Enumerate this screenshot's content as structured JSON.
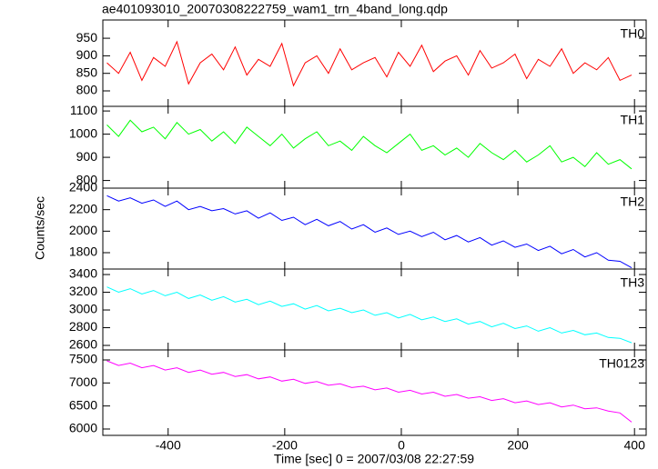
{
  "chart_data": [
    {
      "type": "line",
      "title": "ae401093010_20070308222759_wam1_trn_4band_long.qdp",
      "label": "TH0",
      "xlim": [
        -512,
        420
      ],
      "xticks": [
        -400,
        -200,
        0,
        200,
        400
      ],
      "ylim": [
        756,
        1002
      ],
      "yticks": [
        800,
        850,
        900,
        950
      ],
      "x": [
        -505,
        -485,
        -465,
        -445,
        -425,
        -405,
        -385,
        -365,
        -345,
        -325,
        -305,
        -285,
        -265,
        -245,
        -225,
        -205,
        -185,
        -165,
        -145,
        -125,
        -105,
        -85,
        -65,
        -45,
        -25,
        -5,
        15,
        35,
        55,
        75,
        95,
        115,
        135,
        155,
        175,
        195,
        215,
        235,
        255,
        275,
        295,
        315,
        335,
        355,
        375,
        395
      ],
      "series": [
        {
          "name": "TH0",
          "color": "#ff0000",
          "values": [
            880,
            850,
            910,
            830,
            895,
            870,
            940,
            820,
            880,
            905,
            860,
            925,
            845,
            890,
            870,
            935,
            815,
            880,
            900,
            850,
            920,
            860,
            880,
            895,
            840,
            910,
            870,
            930,
            855,
            885,
            900,
            845,
            915,
            865,
            880,
            905,
            835,
            890,
            870,
            920,
            850,
            880,
            860,
            895,
            830,
            845
          ]
        }
      ]
    },
    {
      "type": "line",
      "label": "TH1",
      "xlim": [
        -512,
        420
      ],
      "xticks": [
        -400,
        -200,
        0,
        200,
        400
      ],
      "ylim": [
        767,
        1120
      ],
      "yticks": [
        800,
        900,
        1000,
        1100
      ],
      "x": [
        -505,
        -485,
        -465,
        -445,
        -425,
        -405,
        -385,
        -365,
        -345,
        -325,
        -305,
        -285,
        -265,
        -245,
        -225,
        -205,
        -185,
        -165,
        -145,
        -125,
        -105,
        -85,
        -65,
        -45,
        -25,
        -5,
        15,
        35,
        55,
        75,
        95,
        115,
        135,
        155,
        175,
        195,
        215,
        235,
        255,
        275,
        295,
        315,
        335,
        355,
        375,
        395
      ],
      "series": [
        {
          "name": "TH1",
          "color": "#00ff00",
          "values": [
            1040,
            990,
            1060,
            1010,
            1030,
            980,
            1050,
            1000,
            1020,
            970,
            1010,
            960,
            1030,
            990,
            950,
            1000,
            940,
            980,
            1010,
            950,
            970,
            930,
            990,
            950,
            920,
            960,
            1000,
            930,
            950,
            910,
            940,
            900,
            960,
            920,
            890,
            930,
            880,
            910,
            950,
            880,
            900,
            860,
            920,
            870,
            890,
            850
          ]
        }
      ]
    },
    {
      "type": "line",
      "label": "TH2",
      "ylabel": "Counts/sec",
      "xlim": [
        -512,
        420
      ],
      "xticks": [
        -400,
        -200,
        0,
        200,
        400
      ],
      "ylim": [
        1648,
        2400
      ],
      "yticks": [
        1800,
        2000,
        2200,
        2400
      ],
      "x": [
        -505,
        -485,
        -465,
        -445,
        -425,
        -405,
        -385,
        -365,
        -345,
        -325,
        -305,
        -285,
        -265,
        -245,
        -225,
        -205,
        -185,
        -165,
        -145,
        -125,
        -105,
        -85,
        -65,
        -45,
        -25,
        -5,
        15,
        35,
        55,
        75,
        95,
        115,
        135,
        155,
        175,
        195,
        215,
        235,
        255,
        275,
        295,
        315,
        335,
        355,
        375,
        395
      ],
      "series": [
        {
          "name": "TH2",
          "color": "#0000ff",
          "values": [
            2330,
            2280,
            2310,
            2260,
            2290,
            2230,
            2280,
            2200,
            2230,
            2190,
            2210,
            2160,
            2190,
            2120,
            2170,
            2100,
            2130,
            2060,
            2110,
            2050,
            2090,
            2020,
            2060,
            1990,
            2030,
            1970,
            2000,
            1950,
            1990,
            1920,
            1960,
            1900,
            1940,
            1870,
            1910,
            1850,
            1880,
            1820,
            1860,
            1790,
            1830,
            1760,
            1800,
            1730,
            1720,
            1660
          ]
        }
      ]
    },
    {
      "type": "line",
      "label": "TH3",
      "xlim": [
        -512,
        420
      ],
      "xticks": [
        -400,
        -200,
        0,
        200,
        400
      ],
      "ylim": [
        2549,
        3462
      ],
      "yticks": [
        2600,
        2800,
        3000,
        3200,
        3400
      ],
      "x": [
        -505,
        -485,
        -465,
        -445,
        -425,
        -405,
        -385,
        -365,
        -345,
        -325,
        -305,
        -285,
        -265,
        -245,
        -225,
        -205,
        -185,
        -165,
        -145,
        -125,
        -105,
        -85,
        -65,
        -45,
        -25,
        -5,
        15,
        35,
        55,
        75,
        95,
        115,
        135,
        155,
        175,
        195,
        215,
        235,
        255,
        275,
        295,
        315,
        335,
        355,
        375,
        395
      ],
      "series": [
        {
          "name": "TH3",
          "color": "#00ffff",
          "values": [
            3260,
            3200,
            3240,
            3180,
            3220,
            3160,
            3200,
            3130,
            3170,
            3110,
            3150,
            3090,
            3120,
            3060,
            3100,
            3040,
            3070,
            3010,
            3050,
            2990,
            3020,
            2970,
            3000,
            2940,
            2970,
            2910,
            2950,
            2890,
            2920,
            2870,
            2900,
            2840,
            2870,
            2810,
            2850,
            2790,
            2820,
            2760,
            2800,
            2740,
            2770,
            2720,
            2740,
            2690,
            2680,
            2630
          ]
        }
      ]
    },
    {
      "type": "line",
      "label": "TH0123",
      "xlabel": "Time [sec] 0 = 2007/03/08 22:27:59",
      "xlim": [
        -512,
        420
      ],
      "xticks": [
        -400,
        -200,
        0,
        200,
        400
      ],
      "ylim": [
        5862,
        7717
      ],
      "yticks": [
        6000,
        6500,
        7000,
        7500
      ],
      "x": [
        -505,
        -485,
        -465,
        -445,
        -425,
        -405,
        -385,
        -365,
        -345,
        -325,
        -305,
        -285,
        -265,
        -245,
        -225,
        -205,
        -185,
        -165,
        -145,
        -125,
        -105,
        -85,
        -65,
        -45,
        -25,
        -5,
        15,
        35,
        55,
        75,
        95,
        115,
        135,
        155,
        175,
        195,
        215,
        235,
        255,
        275,
        295,
        315,
        335,
        355,
        375,
        395
      ],
      "series": [
        {
          "name": "TH0123",
          "color": "#ff00ff",
          "values": [
            7480,
            7380,
            7430,
            7330,
            7380,
            7280,
            7330,
            7230,
            7280,
            7190,
            7230,
            7140,
            7180,
            7090,
            7130,
            7040,
            7080,
            6990,
            7030,
            6950,
            6980,
            6900,
            6930,
            6850,
            6890,
            6800,
            6840,
            6760,
            6800,
            6710,
            6750,
            6670,
            6700,
            6620,
            6660,
            6570,
            6610,
            6530,
            6570,
            6480,
            6520,
            6440,
            6460,
            6390,
            6350,
            6150
          ]
        }
      ]
    }
  ]
}
